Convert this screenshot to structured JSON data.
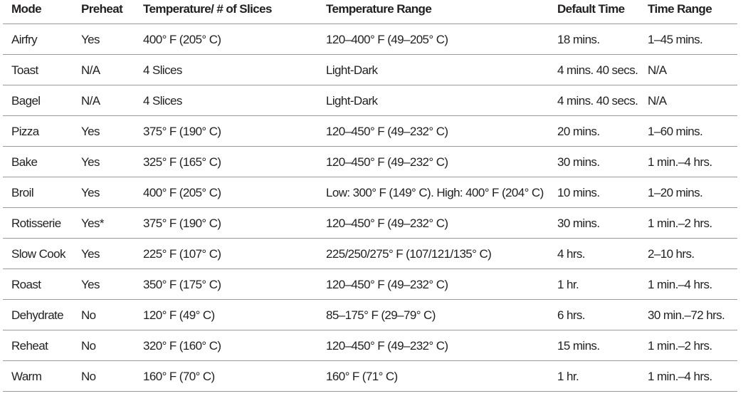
{
  "table": {
    "headers": [
      "Mode",
      "Preheat",
      "Temperature/ # of Slices",
      "Temperature Range",
      "Default Time",
      "Time Range"
    ],
    "rows": [
      [
        "Airfry",
        "Yes",
        "400° F (205° C)",
        "120–400° F (49–205° C)",
        "18 mins.",
        "1–45 mins."
      ],
      [
        "Toast",
        "N/A",
        "4 Slices",
        "Light-Dark",
        "4 mins. 40 secs.",
        "N/A"
      ],
      [
        "Bagel",
        "N/A",
        "4 Slices",
        "Light-Dark",
        "4 mins. 40 secs.",
        "N/A"
      ],
      [
        "Pizza",
        "Yes",
        "375° F (190° C)",
        "120–450° F (49–232° C)",
        "20 mins.",
        "1–60 mins."
      ],
      [
        "Bake",
        "Yes",
        "325° F (165° C)",
        "120–450° F (49–232° C)",
        "30 mins.",
        "1 min.–4 hrs."
      ],
      [
        "Broil",
        "Yes",
        "400° F (205° C)",
        "Low: 300° F (149° C). High: 400° F (204° C)",
        "10 mins.",
        "1–20 mins."
      ],
      [
        "Rotisserie",
        "Yes*",
        "375° F (190° C)",
        "120–450° F (49–232° C)",
        "30 mins.",
        "1 min.–2 hrs."
      ],
      [
        "Slow Cook",
        "Yes",
        "225° F (107° C)",
        "225/250/275° F (107/121/135° C)",
        "4 hrs.",
        "2–10 hrs."
      ],
      [
        "Roast",
        "Yes",
        "350° F (175° C)",
        "120–450° F (49–232° C)",
        "1 hr.",
        "1 min.–4 hrs."
      ],
      [
        "Dehydrate",
        "No",
        "120° F (49° C)",
        "85–175° F (29–79° C)",
        "6 hrs.",
        "30 min.–72 hrs."
      ],
      [
        "Reheat",
        "No",
        "320° F (160° C)",
        "120–450° F (49–232° C)",
        "15 mins.",
        "1 min.–2 hrs."
      ],
      [
        "Warm",
        "No",
        "160° F (70° C)",
        "160° F (71° C)",
        "1 hr.",
        "1 min.–4 hrs."
      ]
    ]
  }
}
